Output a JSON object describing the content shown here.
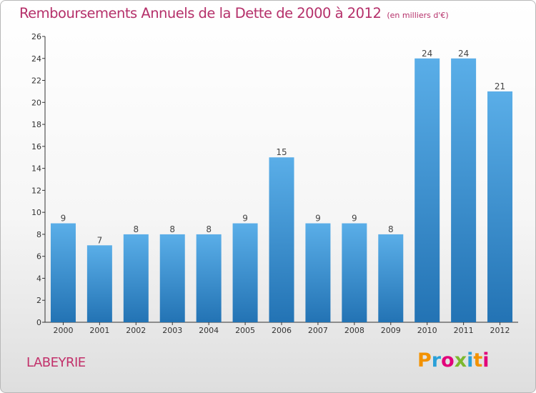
{
  "header": {
    "title": "Remboursements Annuels de la Dette de 2000 à 2012",
    "subtitle": "(en milliers d'€)"
  },
  "footer": {
    "commune": "LABEYRIE",
    "brand": "Proxiti",
    "brand_colors": [
      "#f39200",
      "#2aa0d8",
      "#e2007a",
      "#7cb82f",
      "#2aa0d8",
      "#f39200",
      "#e2007a"
    ]
  },
  "chart_data": {
    "type": "bar",
    "title": "Remboursements Annuels de la Dette de 2000 à 2012",
    "subtitle": "(en milliers d'€)",
    "xlabel": "",
    "ylabel": "",
    "categories": [
      "2000",
      "2001",
      "2002",
      "2003",
      "2004",
      "2005",
      "2006",
      "2007",
      "2008",
      "2009",
      "2010",
      "2011",
      "2012"
    ],
    "values": [
      9,
      7,
      8,
      8,
      8,
      9,
      15,
      9,
      9,
      8,
      24,
      24,
      21
    ],
    "data_labels": [
      "9",
      "7",
      "8",
      "8",
      "8",
      "9",
      "15",
      "9",
      "9",
      "8",
      "24",
      "24",
      "21"
    ],
    "ylim": [
      0,
      26
    ],
    "yticks": [
      "0",
      "2",
      "4",
      "6",
      "8",
      "10",
      "12",
      "14",
      "16",
      "18",
      "20",
      "22",
      "24",
      "26"
    ],
    "grid": false,
    "bar_color_top": "#5aaee8",
    "bar_color_bottom": "#2373b4"
  }
}
